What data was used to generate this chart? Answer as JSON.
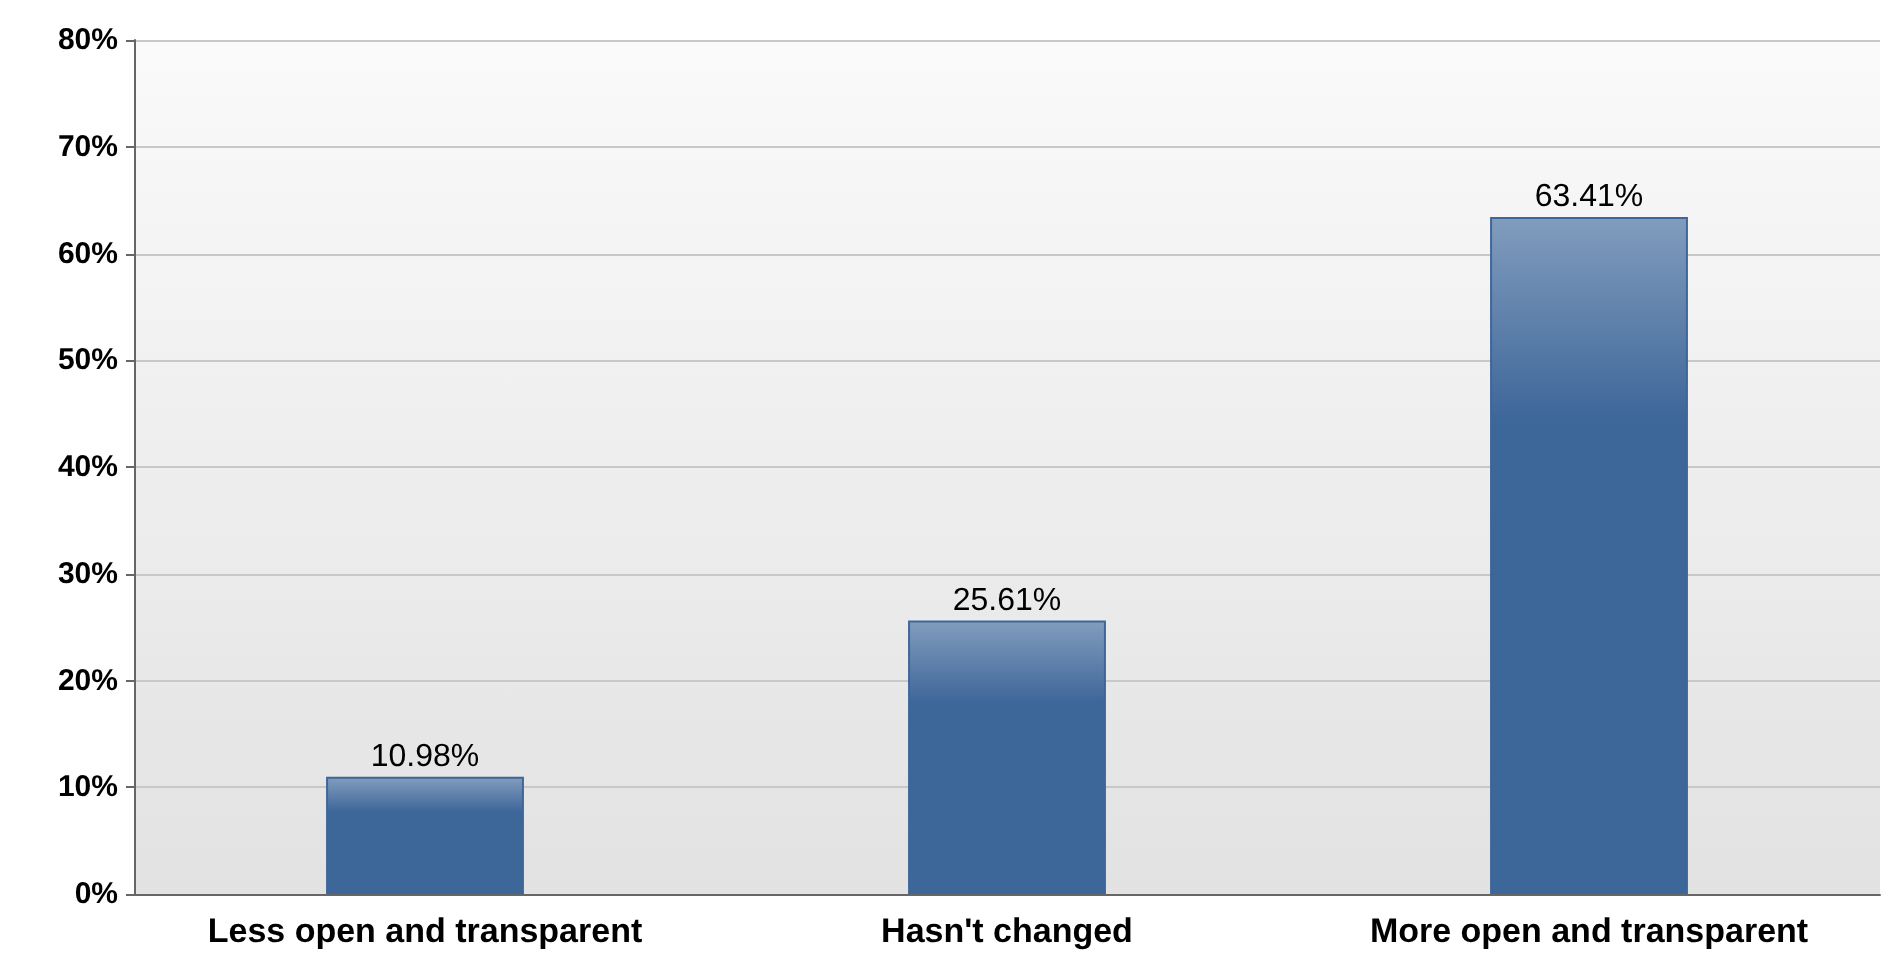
{
  "chart_data": {
    "type": "bar",
    "categories": [
      "Less open and transparent",
      "Hasn't changed",
      "More open and transparent"
    ],
    "values": [
      10.98,
      25.61,
      63.41
    ],
    "color": "#3d6699",
    "value_labels": [
      "10.98%",
      "25.61%",
      "63.41%"
    ],
    "ylim": [
      0,
      80
    ],
    "yticks": [
      {
        "value": 0,
        "label": "0%"
      },
      {
        "value": 10,
        "label": "10%"
      },
      {
        "value": 20,
        "label": "20%"
      },
      {
        "value": 30,
        "label": "30%"
      },
      {
        "value": 40,
        "label": "40%"
      },
      {
        "value": 50,
        "label": "50%"
      },
      {
        "value": 60,
        "label": "60%"
      },
      {
        "value": 70,
        "label": "70%"
      },
      {
        "value": 80,
        "label": "80%"
      }
    ],
    "grid": "y"
  }
}
